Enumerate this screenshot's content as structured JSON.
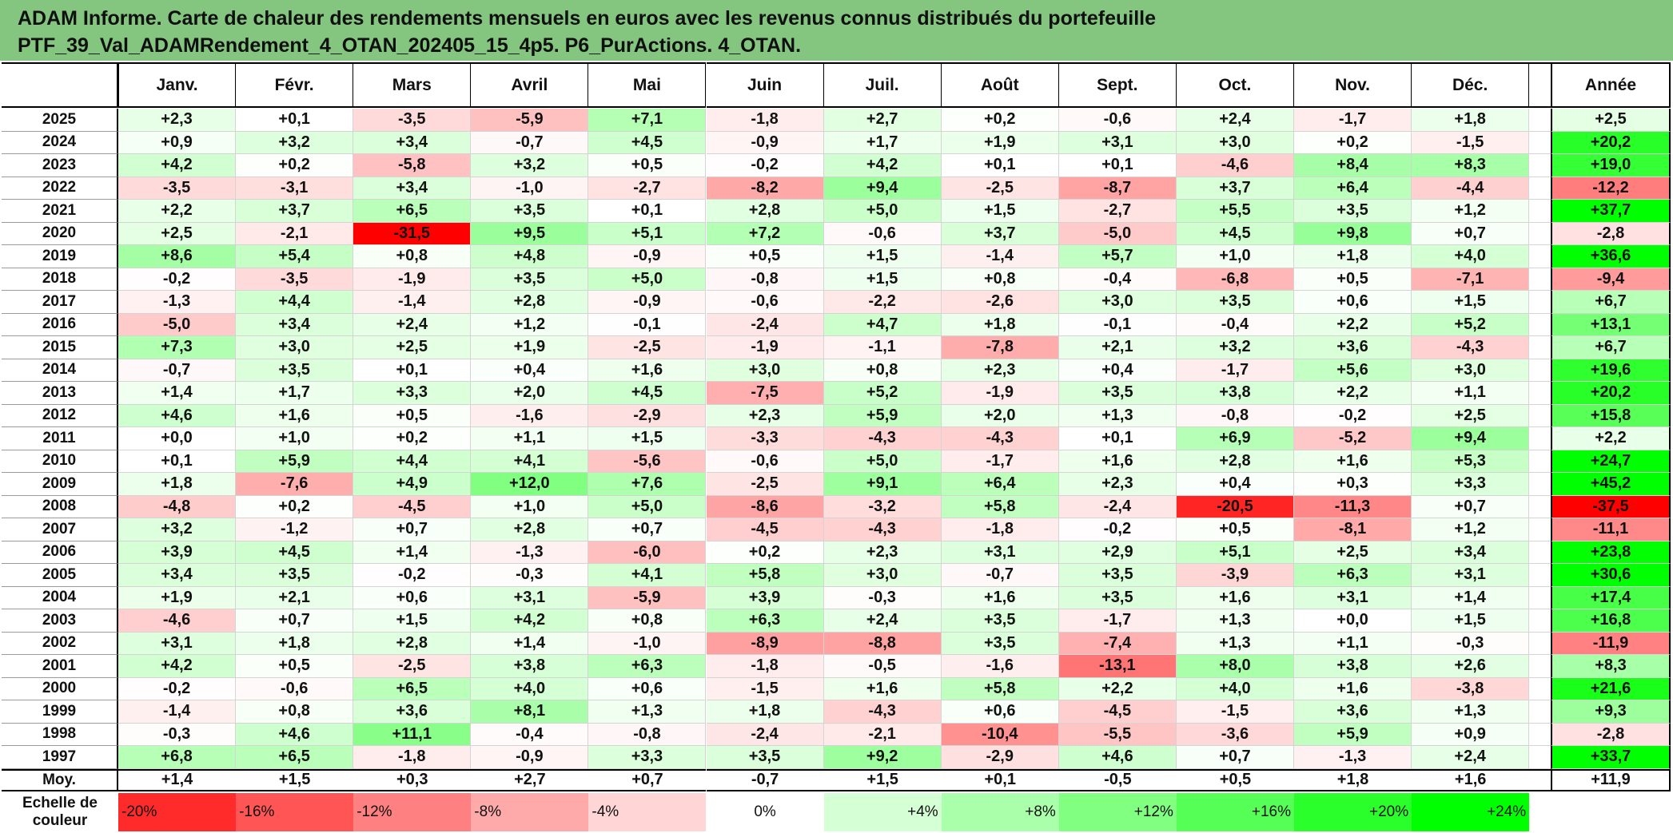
{
  "title_lines": [
    "ADAM Informe. Carte de chaleur des rendements mensuels en euros avec les revenus connus distribués du portefeuille",
    "PTF_39_Val_ADAMRendement_4_OTAN_202405_15_4p5. P6_PurActions. 4_OTAN."
  ],
  "chart_data": {
    "type": "heatmap",
    "columns": [
      "Janv.",
      "Févr.",
      "Mars",
      "Avril",
      "Mai",
      "Juin",
      "Juil.",
      "Août",
      "Sept.",
      "Oct.",
      "Nov.",
      "Déc."
    ],
    "annual_header": "Année",
    "rows": [
      {
        "year": "2025",
        "values": [
          "+2,3",
          "+0,1",
          "-3,5",
          "-5,9",
          "+7,1",
          "-1,8",
          "+2,7",
          "+0,2",
          "-0,6",
          "+2,4",
          "-1,7",
          "+1,8"
        ],
        "annual": "+2,5"
      },
      {
        "year": "2024",
        "values": [
          "+0,9",
          "+3,2",
          "+3,4",
          "-0,7",
          "+4,5",
          "-0,9",
          "+1,7",
          "+1,9",
          "+3,1",
          "+3,0",
          "+0,2",
          "-1,5"
        ],
        "annual": "+20,2"
      },
      {
        "year": "2023",
        "values": [
          "+4,2",
          "+0,2",
          "-5,8",
          "+3,2",
          "+0,5",
          "-0,2",
          "+4,2",
          "+0,1",
          "+0,1",
          "-4,6",
          "+8,4",
          "+8,3"
        ],
        "annual": "+19,0"
      },
      {
        "year": "2022",
        "values": [
          "-3,5",
          "-3,1",
          "+3,4",
          "-1,0",
          "-2,7",
          "-8,2",
          "+9,4",
          "-2,5",
          "-8,7",
          "+3,7",
          "+6,4",
          "-4,4"
        ],
        "annual": "-12,2"
      },
      {
        "year": "2021",
        "values": [
          "+2,2",
          "+3,7",
          "+6,5",
          "+3,5",
          "+0,1",
          "+2,8",
          "+5,0",
          "+1,5",
          "-2,7",
          "+5,5",
          "+3,5",
          "+1,2"
        ],
        "annual": "+37,7"
      },
      {
        "year": "2020",
        "values": [
          "+2,5",
          "-2,1",
          "-31,5",
          "+9,5",
          "+5,1",
          "+7,2",
          "-0,6",
          "+3,7",
          "-5,0",
          "+4,5",
          "+9,8",
          "+0,7"
        ],
        "annual": "-2,8"
      },
      {
        "year": "2019",
        "values": [
          "+8,6",
          "+5,4",
          "+0,8",
          "+4,8",
          "-0,9",
          "+0,5",
          "+1,5",
          "-1,4",
          "+5,7",
          "+1,0",
          "+1,8",
          "+4,0"
        ],
        "annual": "+36,6"
      },
      {
        "year": "2018",
        "values": [
          "-0,2",
          "-3,5",
          "-1,9",
          "+3,5",
          "+5,0",
          "-0,8",
          "+1,5",
          "+0,8",
          "-0,4",
          "-6,8",
          "+0,5",
          "-7,1"
        ],
        "annual": "-9,4"
      },
      {
        "year": "2017",
        "values": [
          "-1,3",
          "+4,4",
          "-1,4",
          "+2,8",
          "-0,9",
          "-0,6",
          "-2,2",
          "-2,6",
          "+3,0",
          "+3,5",
          "+0,6",
          "+1,5"
        ],
        "annual": "+6,7"
      },
      {
        "year": "2016",
        "values": [
          "-5,0",
          "+3,4",
          "+2,4",
          "+1,2",
          "-0,1",
          "-2,4",
          "+4,7",
          "+1,8",
          "-0,1",
          "-0,4",
          "+2,2",
          "+5,2"
        ],
        "annual": "+13,1"
      },
      {
        "year": "2015",
        "values": [
          "+7,3",
          "+3,0",
          "+2,5",
          "+1,9",
          "-2,5",
          "-1,9",
          "-1,1",
          "-7,8",
          "+2,1",
          "+3,2",
          "+3,6",
          "-4,3"
        ],
        "annual": "+6,7"
      },
      {
        "year": "2014",
        "values": [
          "-0,7",
          "+3,5",
          "+0,1",
          "+0,4",
          "+1,6",
          "+3,0",
          "+0,8",
          "+2,3",
          "+0,4",
          "-1,7",
          "+5,6",
          "+3,0"
        ],
        "annual": "+19,6"
      },
      {
        "year": "2013",
        "values": [
          "+1,4",
          "+1,7",
          "+3,3",
          "+2,0",
          "+4,5",
          "-7,5",
          "+5,2",
          "-1,9",
          "+3,5",
          "+3,8",
          "+2,2",
          "+1,1"
        ],
        "annual": "+20,2"
      },
      {
        "year": "2012",
        "values": [
          "+4,6",
          "+1,6",
          "+0,5",
          "-1,6",
          "-2,9",
          "+2,3",
          "+5,9",
          "+2,0",
          "+1,3",
          "-0,8",
          "-0,2",
          "+2,5"
        ],
        "annual": "+15,8"
      },
      {
        "year": "2011",
        "values": [
          "+0,0",
          "+1,0",
          "+0,2",
          "+1,1",
          "+1,5",
          "-3,3",
          "-4,3",
          "-4,3",
          "+0,1",
          "+6,9",
          "-5,2",
          "+9,4"
        ],
        "annual": "+2,2"
      },
      {
        "year": "2010",
        "values": [
          "+0,1",
          "+5,9",
          "+4,4",
          "+4,1",
          "-5,6",
          "-0,6",
          "+5,0",
          "-1,7",
          "+1,6",
          "+2,8",
          "+1,6",
          "+5,3"
        ],
        "annual": "+24,7"
      },
      {
        "year": "2009",
        "values": [
          "+1,8",
          "-7,6",
          "+4,9",
          "+12,0",
          "+7,6",
          "-2,5",
          "+9,1",
          "+6,4",
          "+2,3",
          "+0,4",
          "+0,3",
          "+3,3"
        ],
        "annual": "+45,2"
      },
      {
        "year": "2008",
        "values": [
          "-4,8",
          "+0,2",
          "-4,5",
          "+1,0",
          "+5,0",
          "-8,6",
          "-3,2",
          "+5,8",
          "-2,4",
          "-20,5",
          "-11,3",
          "+0,7"
        ],
        "annual": "-37,5"
      },
      {
        "year": "2007",
        "values": [
          "+3,2",
          "-1,2",
          "+0,7",
          "+2,8",
          "+0,7",
          "-4,5",
          "-4,3",
          "-1,8",
          "-0,2",
          "+0,5",
          "-8,1",
          "+1,2"
        ],
        "annual": "-11,1"
      },
      {
        "year": "2006",
        "values": [
          "+3,9",
          "+4,5",
          "+1,4",
          "-1,3",
          "-6,0",
          "+0,2",
          "+2,3",
          "+3,1",
          "+2,9",
          "+5,1",
          "+2,5",
          "+3,4"
        ],
        "annual": "+23,8"
      },
      {
        "year": "2005",
        "values": [
          "+3,4",
          "+3,5",
          "-0,2",
          "-0,3",
          "+4,1",
          "+5,8",
          "+3,0",
          "-0,7",
          "+3,5",
          "-3,9",
          "+6,3",
          "+3,1"
        ],
        "annual": "+30,6"
      },
      {
        "year": "2004",
        "values": [
          "+1,9",
          "+2,1",
          "+0,6",
          "+3,1",
          "-5,9",
          "+3,9",
          "-0,3",
          "+1,6",
          "+3,5",
          "+1,6",
          "+3,1",
          "+1,4"
        ],
        "annual": "+17,4"
      },
      {
        "year": "2003",
        "values": [
          "-4,6",
          "+0,7",
          "+1,5",
          "+4,2",
          "+0,8",
          "+6,3",
          "+2,4",
          "+3,5",
          "-1,7",
          "+1,3",
          "+0,0",
          "+1,5"
        ],
        "annual": "+16,8"
      },
      {
        "year": "2002",
        "values": [
          "+3,1",
          "+1,8",
          "+2,8",
          "+1,4",
          "-1,0",
          "-8,9",
          "-8,8",
          "+3,5",
          "-7,4",
          "+1,3",
          "+1,1",
          "-0,3"
        ],
        "annual": "-11,9"
      },
      {
        "year": "2001",
        "values": [
          "+4,2",
          "+0,5",
          "-2,5",
          "+3,8",
          "+6,3",
          "-1,8",
          "-0,5",
          "-1,6",
          "-13,1",
          "+8,0",
          "+3,8",
          "+2,6"
        ],
        "annual": "+8,3"
      },
      {
        "year": "2000",
        "values": [
          "-0,2",
          "-0,6",
          "+6,5",
          "+4,0",
          "+0,6",
          "-1,5",
          "+1,6",
          "+5,8",
          "+2,2",
          "+4,0",
          "+1,6",
          "-3,8"
        ],
        "annual": "+21,6"
      },
      {
        "year": "1999",
        "values": [
          "-1,4",
          "+0,8",
          "+3,6",
          "+8,1",
          "+1,3",
          "+1,8",
          "-4,3",
          "+0,6",
          "-4,5",
          "-1,5",
          "+3,6",
          "+1,3"
        ],
        "annual": "+9,3"
      },
      {
        "year": "1998",
        "values": [
          "-0,3",
          "+4,6",
          "+11,1",
          "-0,4",
          "-0,8",
          "-2,4",
          "-2,1",
          "-10,4",
          "-5,5",
          "-3,6",
          "+5,9",
          "+0,9"
        ],
        "annual": "-2,8"
      },
      {
        "year": "1997",
        "values": [
          "+6,8",
          "+6,5",
          "-1,8",
          "-0,9",
          "+3,3",
          "+3,5",
          "+9,2",
          "-2,9",
          "+4,6",
          "+0,7",
          "-1,3",
          "+2,4"
        ],
        "annual": "+33,7"
      }
    ],
    "average": {
      "label": "Moy.",
      "values": [
        "+1,4",
        "+1,5",
        "+0,3",
        "+2,7",
        "+0,7",
        "-0,7",
        "+1,5",
        "+0,1",
        "-0,5",
        "+0,5",
        "+1,8",
        "+1,6"
      ],
      "annual": "+11,9"
    },
    "legend": {
      "label": "Echelle de couleur",
      "steps": [
        "-20%",
        "-16%",
        "-12%",
        "-8%",
        "-4%",
        "0%",
        "+4%",
        "+8%",
        "+12%",
        "+16%",
        "+20%",
        "+24%"
      ],
      "step_values": [
        -20,
        -16,
        -12,
        -8,
        -4,
        0,
        4,
        8,
        12,
        16,
        20,
        24
      ]
    },
    "color_scale": {
      "negative": "#ff0000",
      "zero": "#ffffff",
      "positive": "#00ff00",
      "saturation_at": 24
    },
    "grid": true
  }
}
